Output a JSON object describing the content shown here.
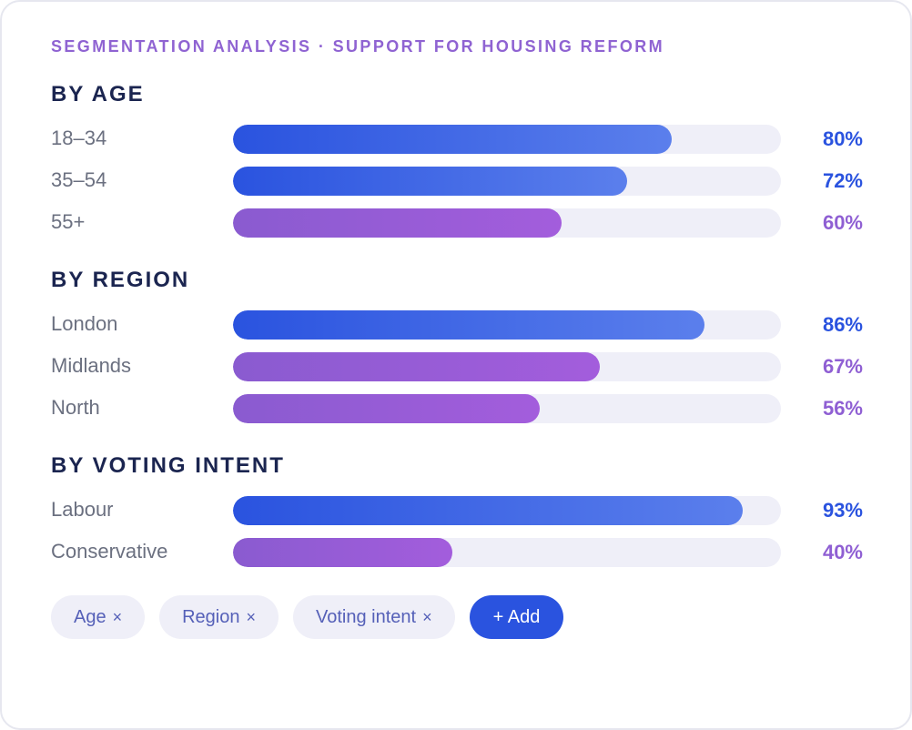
{
  "colors": {
    "blue": "#2a53df",
    "purple": "#8f5fd3",
    "title": "#1b2550",
    "track": "#efeff8"
  },
  "chart_data": {
    "type": "bar",
    "orientation": "horizontal",
    "title": "SEGMENTATION ANALYSIS · SUPPORT FOR HOUSING REFORM",
    "value_range": [
      0,
      100
    ],
    "unit": "%",
    "groups": [
      {
        "title": "BY AGE",
        "rows": [
          {
            "label": "18–34",
            "value": 80,
            "display": "80%",
            "color": "blue"
          },
          {
            "label": "35–54",
            "value": 72,
            "display": "72%",
            "color": "blue"
          },
          {
            "label": "55+",
            "value": 60,
            "display": "60%",
            "color": "purple"
          }
        ]
      },
      {
        "title": "BY REGION",
        "rows": [
          {
            "label": "London",
            "value": 86,
            "display": "86%",
            "color": "blue"
          },
          {
            "label": "Midlands",
            "value": 67,
            "display": "67%",
            "color": "purple"
          },
          {
            "label": "North",
            "value": 56,
            "display": "56%",
            "color": "purple"
          }
        ]
      },
      {
        "title": "BY VOTING INTENT",
        "rows": [
          {
            "label": "Labour",
            "value": 93,
            "display": "93%",
            "color": "blue"
          },
          {
            "label": "Conservative",
            "value": 40,
            "display": "40%",
            "color": "purple"
          }
        ]
      }
    ]
  },
  "filters": [
    {
      "label": "Age",
      "remove_icon": "×"
    },
    {
      "label": "Region",
      "remove_icon": "×"
    },
    {
      "label": "Voting intent",
      "remove_icon": "×"
    }
  ],
  "add_button": {
    "label": "+ Add"
  }
}
